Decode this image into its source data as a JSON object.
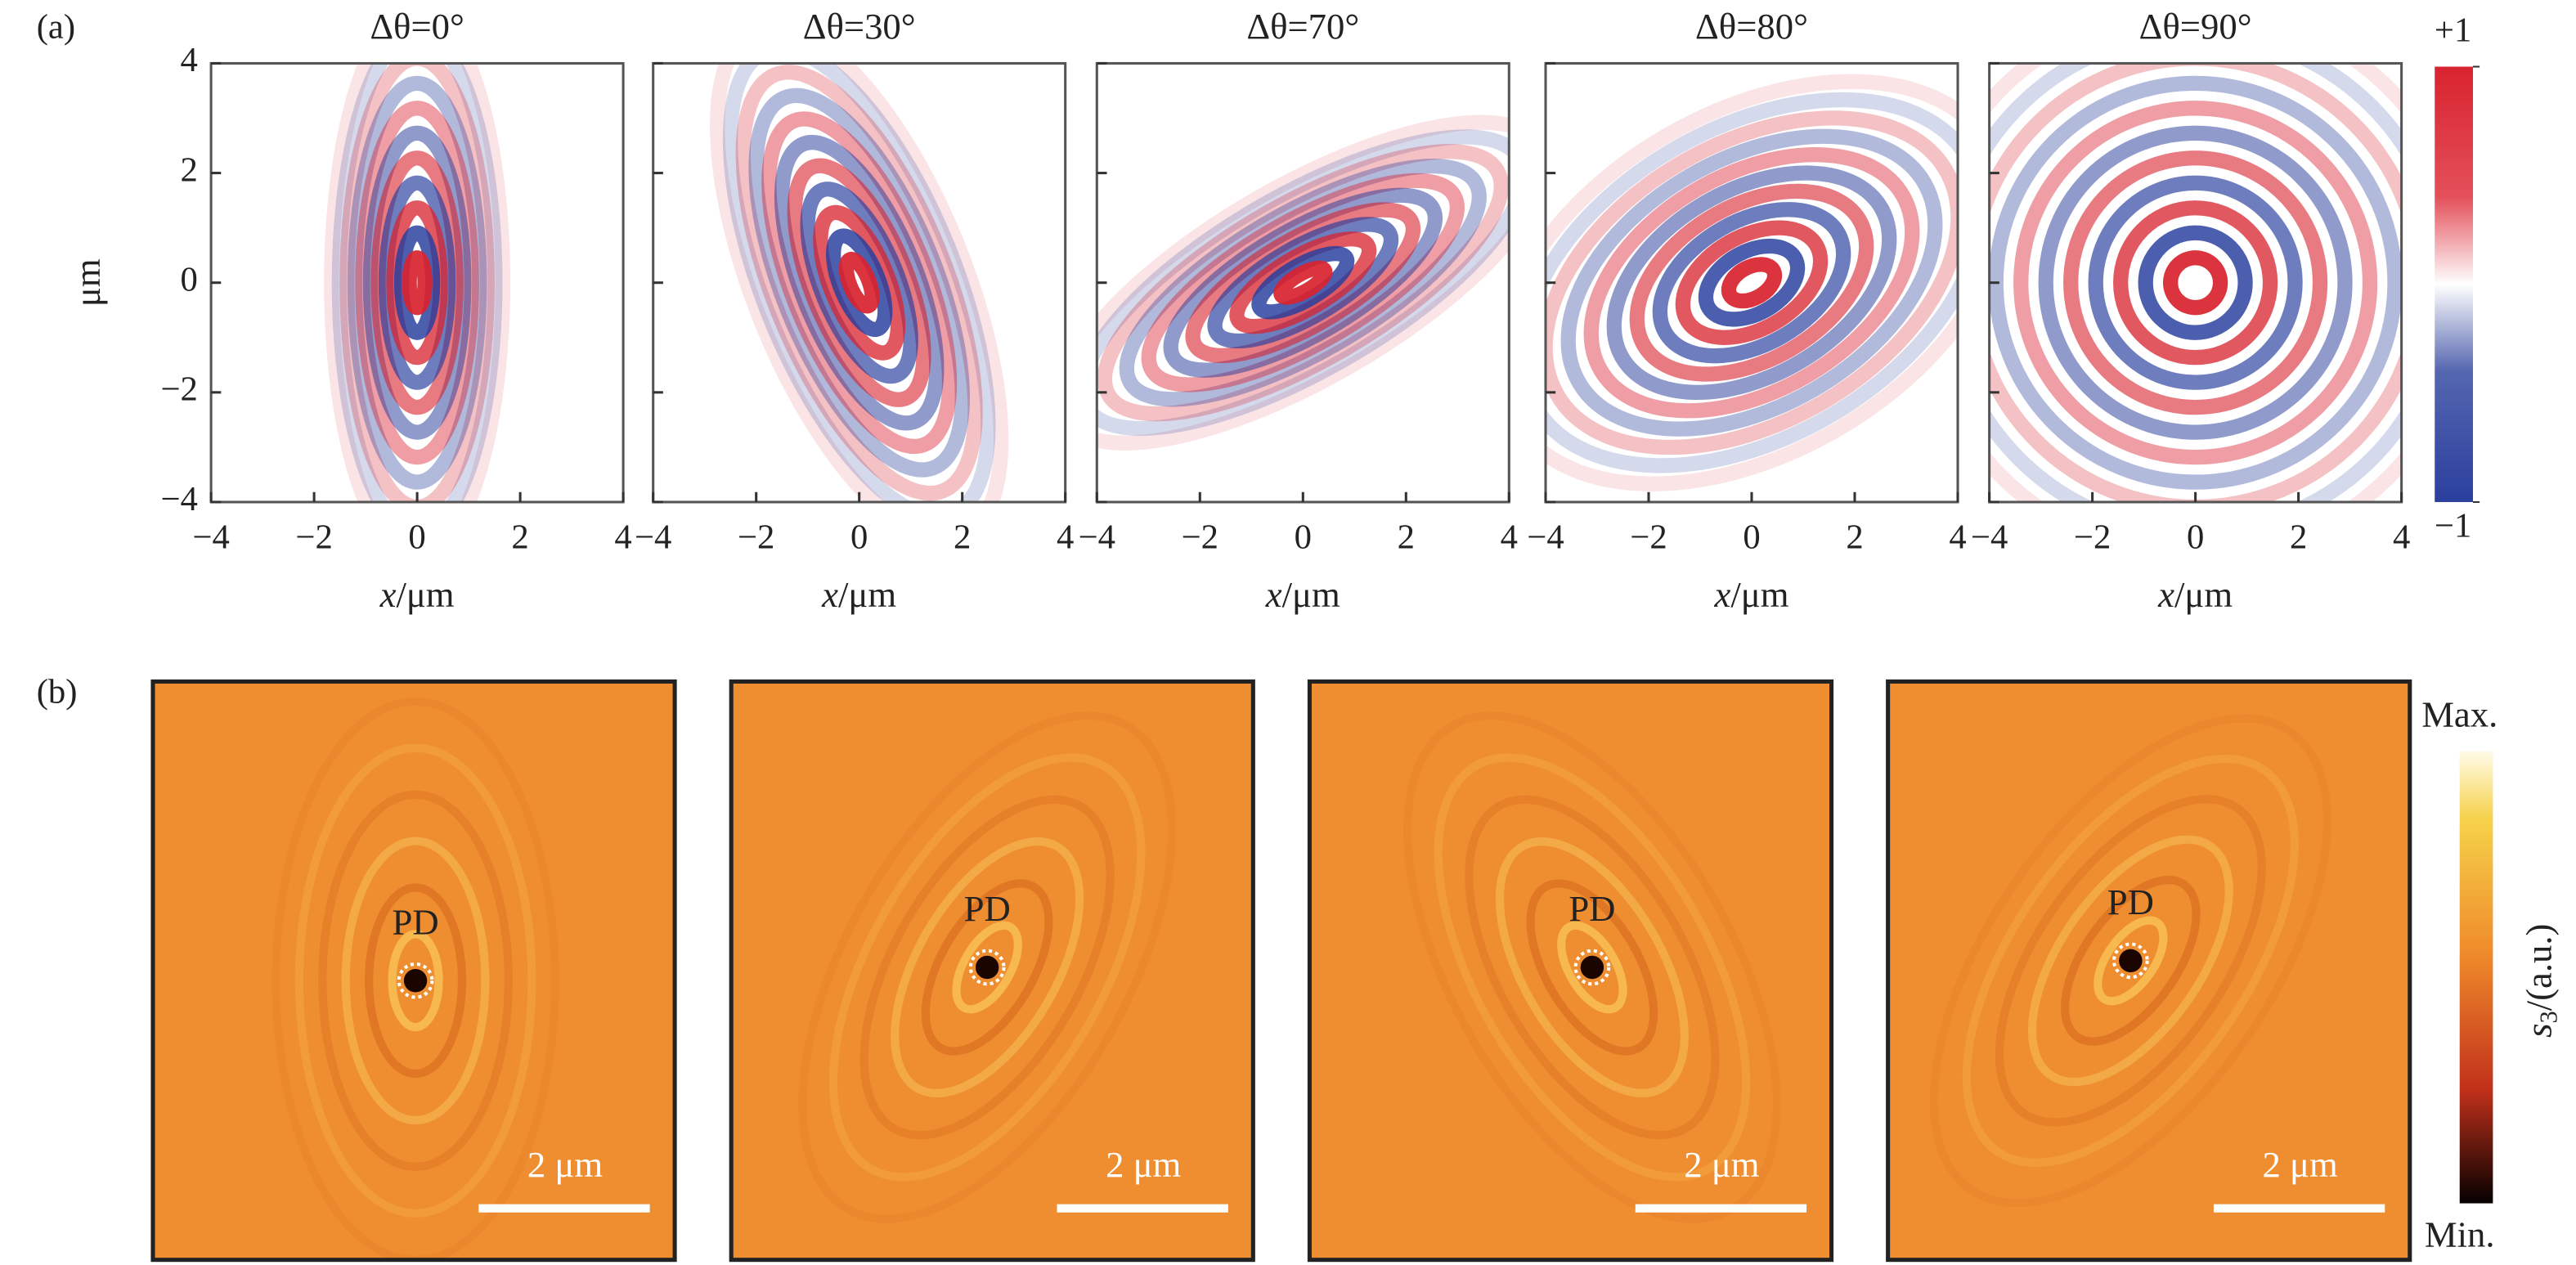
{
  "panel_a": {
    "label": "(a)",
    "y_label": "μm",
    "x_label_var": "x",
    "x_label_unit": "/μm",
    "xlim": [
      -4,
      4
    ],
    "ylim": [
      -4,
      4
    ],
    "xticks": [
      {
        "value": -4,
        "label": "−4"
      },
      {
        "value": -2,
        "label": "−2"
      },
      0,
      2,
      4
    ],
    "yticks": [
      {
        "value": -4,
        "label": "−4"
      },
      {
        "value": -2,
        "label": "−2"
      },
      0,
      2,
      4
    ],
    "titles": [
      "Δθ=0°",
      "Δθ=30°",
      "Δθ=70°",
      "Δθ=80°",
      "Δθ=90°"
    ],
    "colorbar": {
      "lim": [
        -1,
        1
      ],
      "ticks": [
        {
          "value": 1,
          "label": "+1"
        },
        {
          "value": -1,
          "label": "−1"
        }
      ]
    }
  },
  "panel_b": {
    "label": "(b)",
    "images": [
      {
        "marker": "PD",
        "scale_bar": "2 μm"
      },
      {
        "marker": "PD",
        "scale_bar": "2 μm"
      },
      {
        "marker": "PD",
        "scale_bar": "2 μm"
      },
      {
        "marker": "PD",
        "scale_bar": "2 μm"
      }
    ],
    "colorbar": {
      "max": "Max.",
      "min": "Min.",
      "label_var": "s",
      "label_sub": "3",
      "label_unit": "/(a.u.)"
    }
  }
}
